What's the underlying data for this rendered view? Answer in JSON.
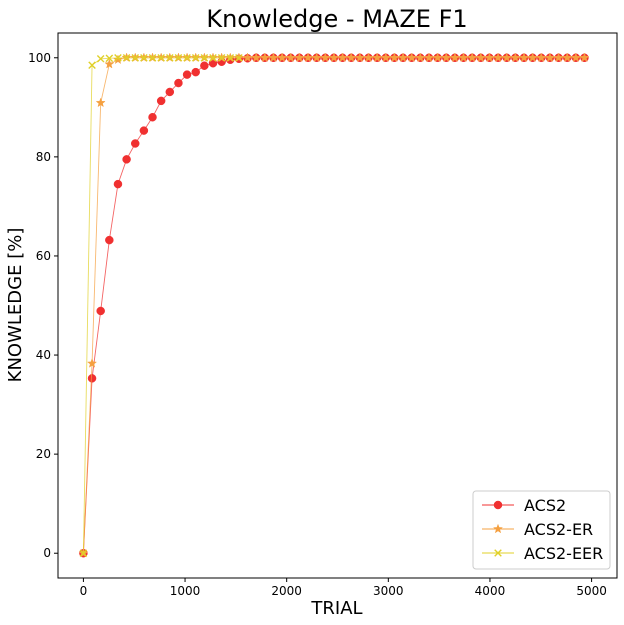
{
  "chart_data": {
    "type": "line",
    "title": "Knowledge - MAZE F1",
    "xlabel": "TRIAL",
    "ylabel": "KNOWLEDGE [%]",
    "xlim": [
      -250,
      5250
    ],
    "ylim": [
      -5,
      105
    ],
    "xticks": [
      0,
      1000,
      2000,
      3000,
      4000,
      5000
    ],
    "yticks": [
      0,
      20,
      40,
      60,
      80,
      100
    ],
    "grid": false,
    "legend_position": "bottom-right",
    "series": [
      {
        "name": "ACS2",
        "color": "#f03030",
        "marker": "circle",
        "marker_every": 1,
        "x": [
          0,
          85,
          170,
          255,
          340,
          425,
          510,
          595,
          680,
          765,
          850,
          935,
          1020,
          1105,
          1190,
          1275,
          1360,
          1445,
          1530,
          1615,
          1700,
          1785,
          1870,
          1955,
          2040,
          2125,
          2210,
          2295,
          2380,
          2465,
          2550,
          2635,
          2720,
          2805,
          2890,
          2975,
          3060,
          3145,
          3230,
          3315,
          3400,
          3485,
          3570,
          3655,
          3740,
          3825,
          3910,
          3995,
          4080,
          4165,
          4250,
          4335,
          4420,
          4505,
          4590,
          4675,
          4760,
          4845,
          4930
        ],
        "y": [
          0,
          35.3,
          48.9,
          63.2,
          74.5,
          79.5,
          82.7,
          85.3,
          88.0,
          91.3,
          93.1,
          94.9,
          96.6,
          97.1,
          98.4,
          98.9,
          99.2,
          99.6,
          99.8,
          99.9,
          100,
          100,
          100,
          100,
          100,
          100,
          100,
          100,
          100,
          100,
          100,
          100,
          100,
          100,
          100,
          100,
          100,
          100,
          100,
          100,
          100,
          100,
          100,
          100,
          100,
          100,
          100,
          100,
          100,
          100,
          100,
          100,
          100,
          100,
          100,
          100,
          100,
          100,
          100
        ]
      },
      {
        "name": "ACS2-ER",
        "color": "#f5a040",
        "marker": "star",
        "marker_every": 1,
        "x": [
          0,
          85,
          170,
          255,
          340,
          425,
          510,
          595,
          680,
          765,
          850,
          935,
          1020,
          1105,
          1190,
          1275,
          1360,
          1445,
          1530,
          1615,
          1700,
          1785,
          1870,
          1955,
          2040,
          2125,
          2210,
          2295,
          2380,
          2465,
          2550,
          2635,
          2720,
          2805,
          2890,
          2975,
          3060,
          3145,
          3230,
          3315,
          3400,
          3485,
          3570,
          3655,
          3740,
          3825,
          3910,
          3995,
          4080,
          4165,
          4250,
          4335,
          4420,
          4505,
          4590,
          4675,
          4760,
          4845,
          4930
        ],
        "y": [
          0,
          38.3,
          90.9,
          98.7,
          99.6,
          100,
          100,
          100,
          100,
          100,
          100,
          100,
          100,
          100,
          100,
          100,
          100,
          100,
          100,
          100,
          100,
          100,
          100,
          100,
          100,
          100,
          100,
          100,
          100,
          100,
          100,
          100,
          100,
          100,
          100,
          100,
          100,
          100,
          100,
          100,
          100,
          100,
          100,
          100,
          100,
          100,
          100,
          100,
          100,
          100,
          100,
          100,
          100,
          100,
          100,
          100,
          100,
          100,
          100
        ]
      },
      {
        "name": "ACS2-EER",
        "color": "#e0d028",
        "marker": "x",
        "marker_every": 1,
        "x": [
          0,
          85,
          170,
          255,
          340,
          425,
          510,
          595,
          680,
          765,
          850,
          935,
          1020,
          1105,
          1190,
          1275,
          1360,
          1445,
          1530
        ],
        "y": [
          0,
          98.5,
          99.8,
          99.9,
          100,
          100,
          100,
          100,
          100,
          100,
          100,
          100,
          100,
          100,
          100,
          100,
          100,
          100,
          100
        ]
      }
    ]
  }
}
